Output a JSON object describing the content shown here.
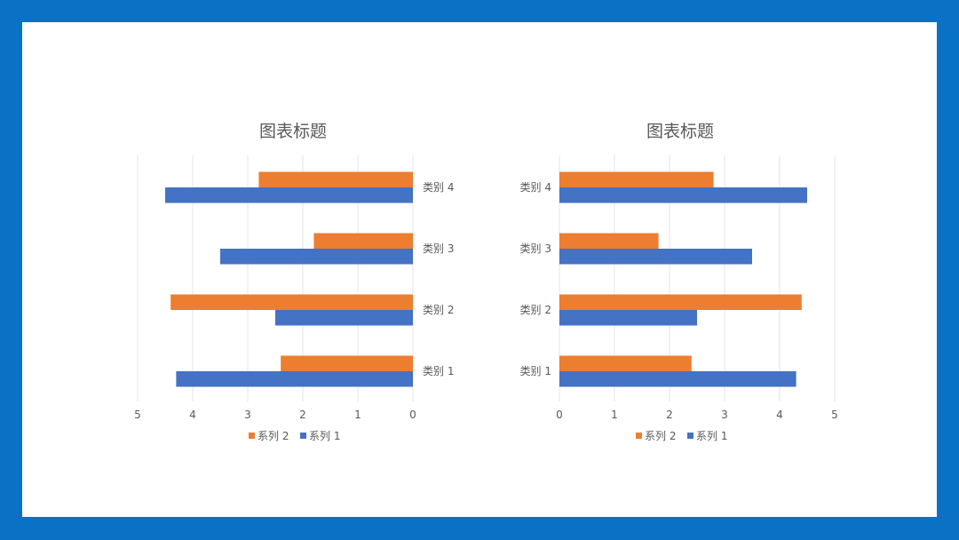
{
  "colors": {
    "frame": "#0a72c4",
    "series_1": "#4472c4",
    "series_2": "#ed7d31"
  },
  "chart_data": [
    {
      "type": "bar",
      "orientation": "horizontal",
      "x_axis_reversed": true,
      "category_labels_side": "right",
      "title": "图表标题",
      "categories": [
        "类别 1",
        "类别 2",
        "类别 3",
        "类别 4"
      ],
      "series": [
        {
          "name": "系列 1",
          "values": [
            4.3,
            2.5,
            3.5,
            4.5
          ]
        },
        {
          "name": "系列 2",
          "values": [
            2.4,
            4.4,
            1.8,
            2.8
          ]
        }
      ],
      "xlim": [
        0,
        5
      ],
      "ticks": [
        "0",
        "1",
        "2",
        "3",
        "4",
        "5"
      ],
      "grid": true,
      "legend": {
        "position": "bottom",
        "order": [
          "系列 2",
          "系列 1"
        ]
      }
    },
    {
      "type": "bar",
      "orientation": "horizontal",
      "x_axis_reversed": false,
      "category_labels_side": "left",
      "title": "图表标题",
      "categories": [
        "类别 1",
        "类别 2",
        "类别 3",
        "类别 4"
      ],
      "series": [
        {
          "name": "系列 1",
          "values": [
            4.3,
            2.5,
            3.5,
            4.5
          ]
        },
        {
          "name": "系列 2",
          "values": [
            2.4,
            4.4,
            1.8,
            2.8
          ]
        }
      ],
      "xlim": [
        0,
        5
      ],
      "ticks": [
        "0",
        "1",
        "2",
        "3",
        "4",
        "5"
      ],
      "grid": true,
      "legend": {
        "position": "bottom",
        "order": [
          "系列 2",
          "系列 1"
        ]
      }
    }
  ]
}
